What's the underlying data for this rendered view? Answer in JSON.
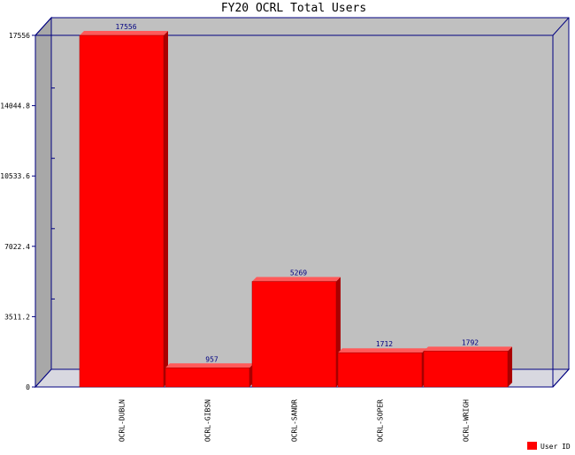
{
  "chart_data": {
    "type": "bar",
    "title": "FY20 OCRL Total Users",
    "categories": [
      "OCRL-DUBLN",
      "OCRL-GIBSN",
      "OCRL-SANDR",
      "OCRL-SOPER",
      "OCRL-WRIGH"
    ],
    "series": [
      {
        "name": "User ID",
        "values": [
          17556,
          957,
          5269,
          1712,
          1792
        ],
        "color": "#ff0000"
      }
    ],
    "value_labels": [
      "17556",
      "957",
      "5269",
      "1712",
      "1792"
    ],
    "y_ticks": [
      "0",
      "3511.2",
      "7022.4",
      "10533.6",
      "14044.8",
      "17556"
    ],
    "ylim": [
      0,
      17556
    ],
    "xlabel": "",
    "ylabel": "",
    "grid": false,
    "legend_position": "bottom-right",
    "style": {
      "plot_background": "#c0c0c0",
      "floor_color": "#d8d8e0",
      "left_wall_color": "#a8a8a8",
      "axis_color": "#000080",
      "bar_color": "#ff0000",
      "bar_top_color": "#ff5a5a",
      "bar_side_color": "#aa0000",
      "label_color": "#000080",
      "text_color": "#000000"
    }
  }
}
